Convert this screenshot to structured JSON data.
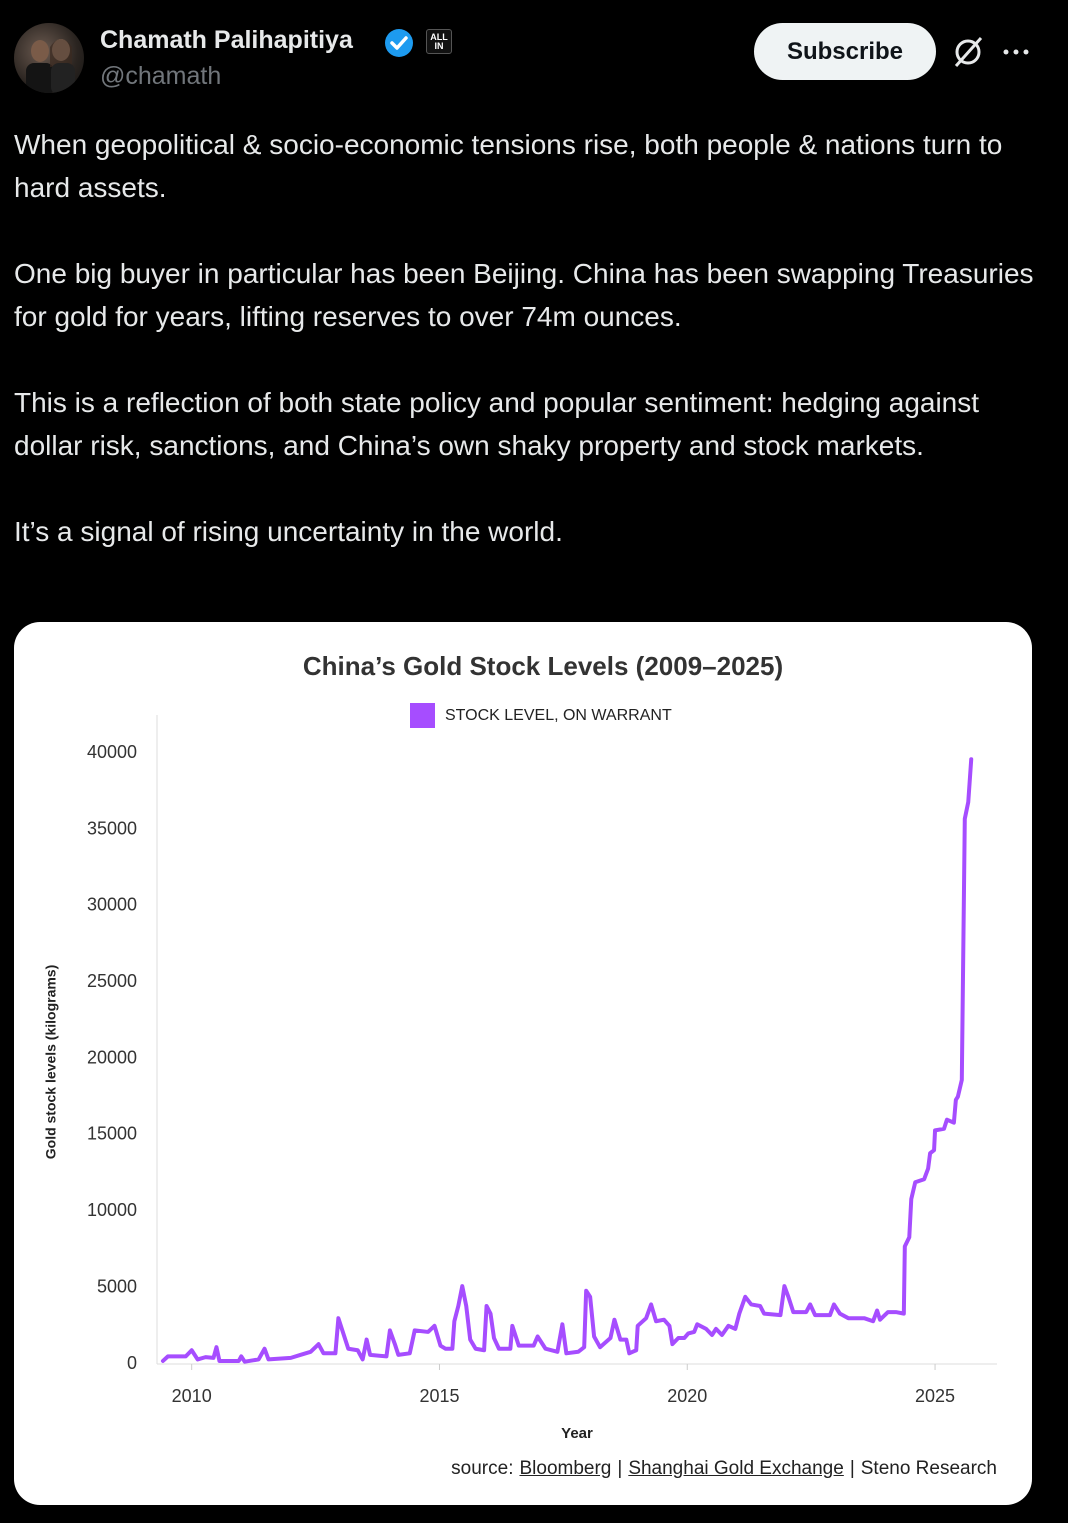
{
  "header": {
    "name": "Chamath Palihapitiya",
    "badge": "ALL IN",
    "handle": "@chamath",
    "button": "Subscribe"
  },
  "tweet": {
    "paragraphs": [
      "When geopolitical & socio-economic tensions rise, both people & nations turn to hard assets.",
      "One big buyer in particular has been Beijing. China has been swapping Treasuries for gold for years, lifting reserves to over 74m ounces.",
      "This is a reflection of both state policy and popular sentiment: hedging against dollar risk, sanctions, and China’s own shaky property and stock markets.",
      "It’s a signal of rising uncertainty in the world."
    ]
  },
  "chart_data": {
    "type": "line",
    "title": "China’s Gold Stock Levels (2009–2025)",
    "x_label": "Year",
    "y_label": "Gold stock levels (kilograms)",
    "source": [
      "source:",
      "Bloomberg",
      "|",
      "Shanghai Gold Exchange",
      "|",
      "Steno Research"
    ],
    "x": [
      2009.42,
      2009.52,
      2009.88,
      2010.0,
      2010.12,
      2010.28,
      2010.44,
      2010.5,
      2010.56,
      2010.95,
      2011.0,
      2011.07,
      2011.35,
      2011.47,
      2011.55,
      2012.0,
      2012.2,
      2012.4,
      2012.56,
      2012.66,
      2012.9,
      2012.96,
      2013.1,
      2013.16,
      2013.35,
      2013.45,
      2013.53,
      2013.6,
      2013.93,
      2014.0,
      2014.1,
      2014.17,
      2014.4,
      2014.5,
      2014.77,
      2014.9,
      2015.02,
      2015.12,
      2015.26,
      2015.3,
      2015.38,
      2015.46,
      2015.54,
      2015.62,
      2015.73,
      2015.9,
      2015.95,
      2016.03,
      2016.1,
      2016.2,
      2016.43,
      2016.47,
      2016.6,
      2016.9,
      2016.98,
      2017.14,
      2017.38,
      2017.48,
      2017.56,
      2017.8,
      2017.92,
      2017.96,
      2018.04,
      2018.12,
      2018.24,
      2018.45,
      2018.53,
      2018.65,
      2018.77,
      2018.83,
      2018.97,
      2019.0,
      2019.17,
      2019.27,
      2019.37,
      2019.53,
      2019.64,
      2019.7,
      2019.82,
      2019.94,
      2020.02,
      2020.14,
      2020.2,
      2020.38,
      2020.5,
      2020.58,
      2020.7,
      2020.83,
      2020.97,
      2021.05,
      2021.17,
      2021.29,
      2021.47,
      2021.55,
      2021.88,
      2021.96,
      2022.04,
      2022.14,
      2022.4,
      2022.48,
      2022.58,
      2022.88,
      2022.96,
      2023.08,
      2023.25,
      2023.57,
      2023.75,
      2023.83,
      2023.89,
      2024.05,
      2024.21,
      2024.37,
      2024.39,
      2024.48,
      2024.52,
      2024.6,
      2024.78,
      2024.86,
      2024.9,
      2024.98,
      2025.0,
      2025.18,
      2025.24,
      2025.38,
      2025.42,
      2025.46,
      2025.54,
      2025.6,
      2025.67,
      2025.73
    ],
    "series": [
      {
        "name": "STOCK LEVEL, ON WARRANT",
        "color": "#a64dff",
        "values": [
          200,
          500,
          500,
          900,
          300,
          450,
          400,
          1100,
          200,
          200,
          500,
          150,
          300,
          1000,
          300,
          400,
          600,
          800,
          1300,
          700,
          700,
          3000,
          1600,
          1000,
          900,
          300,
          1600,
          600,
          500,
          2200,
          1300,
          600,
          700,
          2200,
          2100,
          2500,
          1200,
          1000,
          1000,
          2800,
          3800,
          5100,
          3800,
          1600,
          1000,
          900,
          3800,
          3300,
          1700,
          1000,
          1000,
          2500,
          1200,
          1200,
          1800,
          1000,
          800,
          2600,
          700,
          800,
          1100,
          4800,
          4400,
          1800,
          1100,
          1700,
          2900,
          1600,
          1600,
          700,
          900,
          2500,
          3000,
          3900,
          2800,
          2900,
          2500,
          1300,
          1700,
          1700,
          2000,
          2100,
          2600,
          2300,
          1900,
          2300,
          1900,
          2500,
          2300,
          3300,
          4400,
          3900,
          3800,
          3300,
          3200,
          5100,
          4400,
          3400,
          3400,
          3900,
          3200,
          3200,
          3900,
          3300,
          3000,
          3000,
          2800,
          3500,
          2900,
          3400,
          3400,
          3300,
          7700,
          8300,
          10800,
          11900,
          12100,
          12800,
          13800,
          14000,
          15300,
          15400,
          16000,
          15800,
          17300,
          17500,
          18600,
          35700,
          36800,
          39600
        ]
      }
    ],
    "xlim": [
      2009.3,
      2026.25
    ],
    "xticks": [
      2010,
      2015,
      2020,
      2025
    ],
    "ylim": [
      0,
      42500
    ],
    "yticks": [
      0,
      5000,
      10000,
      15000,
      20000,
      25000,
      30000,
      35000,
      40000
    ],
    "grid": false,
    "legend": "top"
  }
}
